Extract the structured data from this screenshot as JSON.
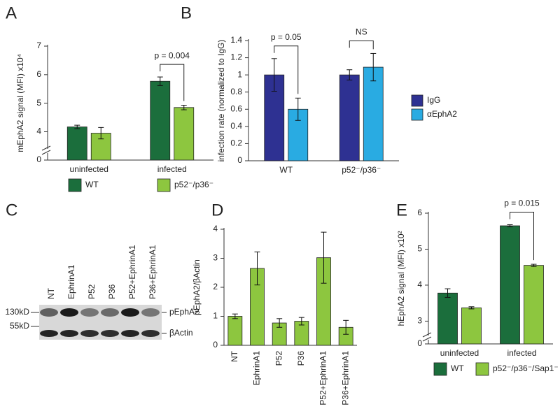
{
  "chart_data": [
    {
      "type": "bar",
      "label": "A",
      "ylabel": "mEphA2 signal (MFI) x10⁴",
      "categories": [
        "uninfected",
        "infected"
      ],
      "series": [
        {
          "name": "WT",
          "color": "#1b6e3c",
          "values": [
            4.17,
            5.77
          ],
          "errors": [
            0.06,
            0.15
          ]
        },
        {
          "name": "p52⁻/p36⁻",
          "color": "#8dc63f",
          "values": [
            3.95,
            4.85
          ],
          "errors": [
            0.2,
            0.08
          ]
        }
      ],
      "ylim": [
        0,
        7
      ],
      "yticks": [
        0,
        4,
        5,
        6,
        7
      ],
      "ybreak": [
        0,
        3.4
      ],
      "annotations": [
        {
          "text": "p = 0.004",
          "category": 1
        }
      ],
      "legend": "bottom"
    },
    {
      "type": "bar",
      "label": "B",
      "ylabel": "infection rate (normalized to IgG)",
      "categories": [
        "WT",
        "p52⁻/p36⁻"
      ],
      "series": [
        {
          "name": "IgG",
          "color": "#2e3192",
          "values": [
            1.0,
            1.0
          ],
          "errors": [
            0.19,
            0.06
          ]
        },
        {
          "name": "αEphA2",
          "color": "#29abe2",
          "values": [
            0.6,
            1.09
          ],
          "errors": [
            0.13,
            0.16
          ]
        }
      ],
      "ylim": [
        0,
        1.4
      ],
      "yticks": [
        0,
        0.2,
        0.4,
        0.6,
        0.8,
        1,
        1.2,
        1.4
      ],
      "annotations": [
        {
          "text": "p = 0.05",
          "category": 0
        },
        {
          "text": "NS",
          "category": 1
        }
      ],
      "legend": "right"
    },
    {
      "type": "blot",
      "label": "C",
      "lanes": [
        "NT",
        "EphrinA1",
        "P52",
        "P36",
        "P52+EphrinA1",
        "P36+EphrinA1"
      ],
      "markers": [
        "130kD",
        "55kD"
      ],
      "bands": [
        "pEphA2",
        "βActin"
      ]
    },
    {
      "type": "bar",
      "label": "D",
      "ylabel": "pEphA2/βActin",
      "categories": [
        "NT",
        "EphrinA1",
        "P52",
        "P36",
        "P52+EphrinA1",
        "P36+EphrinA1"
      ],
      "values": [
        1.0,
        2.65,
        0.77,
        0.83,
        3.02,
        0.62
      ],
      "errors": [
        0.08,
        0.57,
        0.15,
        0.13,
        0.88,
        0.24
      ],
      "color": "#8dc63f",
      "ylim": [
        0,
        4
      ],
      "yticks": [
        0,
        1,
        2,
        3,
        4
      ]
    },
    {
      "type": "bar",
      "label": "E",
      "ylabel": "hEphA2 signal (MFI) x10²",
      "categories": [
        "uninfected",
        "infected"
      ],
      "series": [
        {
          "name": "WT",
          "color": "#1b6e3c",
          "values": [
            3.78,
            5.65
          ],
          "errors": [
            0.12,
            0.03
          ]
        },
        {
          "name": "p52⁻/p36⁻/Sap1⁻",
          "color": "#8dc63f",
          "values": [
            3.37,
            4.55
          ],
          "errors": [
            0.03,
            0.03
          ]
        }
      ],
      "ylim": [
        0,
        6
      ],
      "yticks": [
        0,
        3,
        4,
        5,
        6
      ],
      "ybreak": [
        0,
        2.6
      ],
      "annotations": [
        {
          "text": "p = 0.015",
          "category": 1
        }
      ],
      "legend": "bottom"
    }
  ]
}
